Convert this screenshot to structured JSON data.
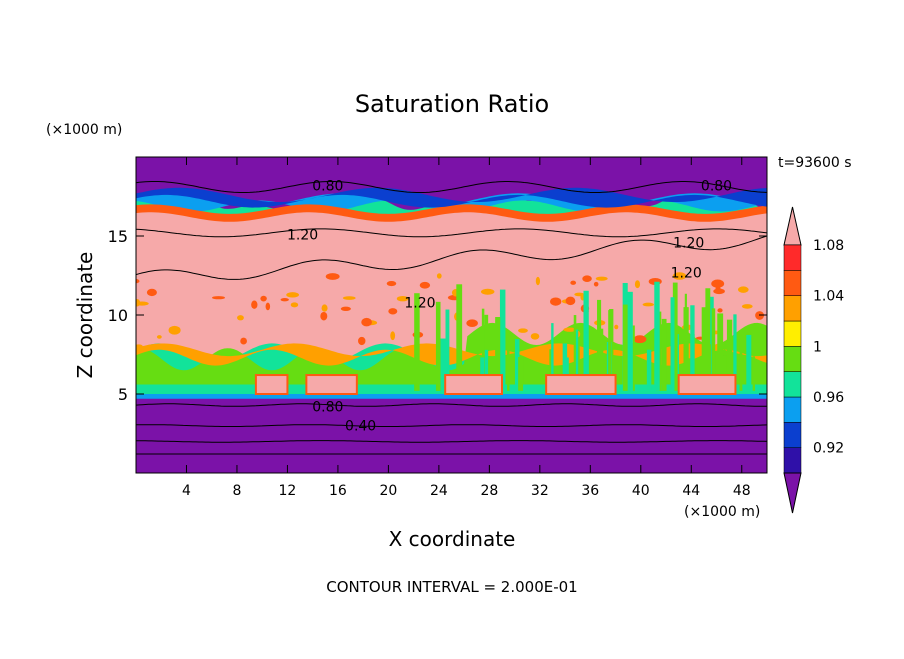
{
  "chart_data": {
    "type": "heatmap",
    "title": "Saturation Ratio",
    "xlabel": "X coordinate",
    "ylabel": "Z coordinate",
    "x_unit": "(×1000 m)",
    "y_unit": "(×1000 m)",
    "time_label": "t=93600 s",
    "footer": "CONTOUR INTERVAL = 2.000E-01",
    "xlim": [
      0,
      50
    ],
    "ylim": [
      0,
      20
    ],
    "x_ticks": [
      4,
      8,
      12,
      16,
      20,
      24,
      28,
      32,
      36,
      40,
      44,
      48
    ],
    "y_ticks": [
      5,
      10,
      15
    ],
    "colorbar": {
      "levels": [
        0.92,
        0.94,
        0.96,
        0.98,
        1.0,
        1.02,
        1.04,
        1.06,
        1.08,
        1.1
      ],
      "tick_labels": [
        "1.08",
        "1.04",
        "1",
        "0.96",
        "0.92"
      ],
      "tick_values": [
        1.08,
        1.04,
        1.0,
        0.96,
        0.92
      ],
      "colors": [
        "#7b12a8",
        "#2f10a8",
        "#0b3fcf",
        "#0b9ff0",
        "#12e39a",
        "#66dd12",
        "#ffee00",
        "#ffa000",
        "#ff5a12",
        "#ff2a2a",
        "#f6a9a9"
      ]
    },
    "contour_labels": [
      {
        "text": "0.80",
        "x": 15.2,
        "y": 18.2
      },
      {
        "text": "0.80",
        "x": 46.0,
        "y": 18.2
      },
      {
        "text": "1.20",
        "x": 13.2,
        "y": 15.1
      },
      {
        "text": "1.20",
        "x": 43.8,
        "y": 14.6
      },
      {
        "text": "1.20",
        "x": 43.6,
        "y": 12.7
      },
      {
        "text": "1.20",
        "x": 22.5,
        "y": 10.8
      },
      {
        "text": "0.80",
        "x": 15.2,
        "y": 4.2
      },
      {
        "text": "0.40",
        "x": 17.8,
        "y": 3.0
      }
    ]
  }
}
